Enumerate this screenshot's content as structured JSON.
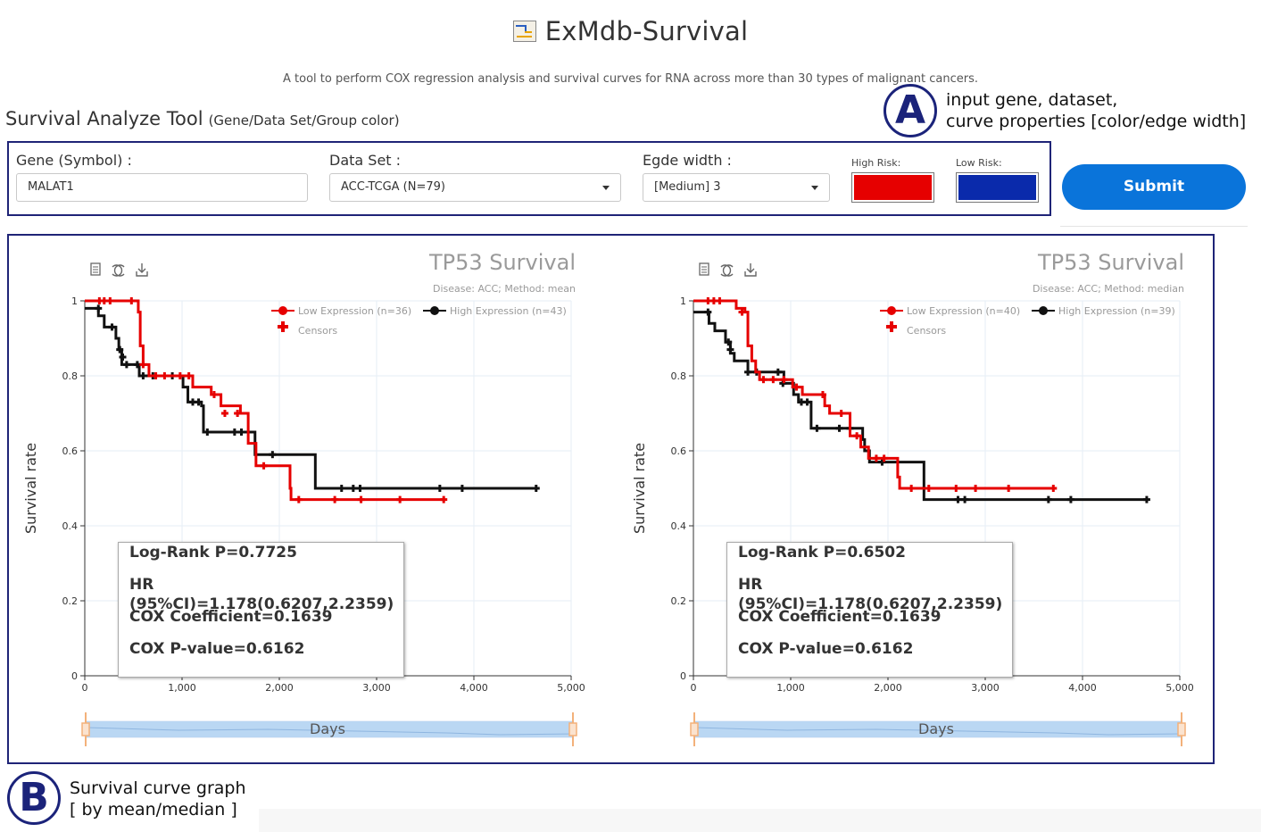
{
  "app": {
    "title": "ExMdb-Survival",
    "subtitle": "A tool to perform COX regression analysis and survival curves for RNA across more than 30 types of malignant cancers.",
    "logo_icon": "chart-logo-icon"
  },
  "tool": {
    "title": "Survival Analyze Tool",
    "hint": "(Gene/Data Set/Group color)"
  },
  "annotations": {
    "a_letter": "A",
    "a_line1": "input gene, dataset,",
    "a_line2": "curve properties [color/edge width]",
    "b_letter": "B",
    "b_line1": "Survival curve graph",
    "b_line2": "[ by mean/median ]"
  },
  "form": {
    "gene_label": "Gene (Symbol) :",
    "gene_value": "MALAT1",
    "dataset_label": "Data Set :",
    "dataset_value": "ACC-TCGA (N=79)",
    "edge_label": "Egde width :",
    "edge_value": "[Medium] 3",
    "high_risk_label": "High Risk:",
    "low_risk_label": "Low Risk:",
    "high_risk_color": "#e60000",
    "low_risk_color": "#0a2aab",
    "submit_label": "Submit"
  },
  "toolbox_icons": [
    "data-view-icon",
    "restore-icon",
    "save-image-icon"
  ],
  "chart_data": [
    {
      "type": "line",
      "title": "TP53 Survival",
      "subtitle": "Disease: ACC; Method: mean",
      "xlabel": "Days",
      "ylabel": "Survival rate",
      "xlim": [
        0,
        5000
      ],
      "ylim": [
        0,
        1
      ],
      "xticks": [
        "0",
        "1,000",
        "2,000",
        "3,000",
        "4,000",
        "5,000"
      ],
      "yticks": [
        "0",
        "0.2",
        "0.4",
        "0.6",
        "0.8",
        "1"
      ],
      "grid": true,
      "legend_position": "top-right",
      "series": [
        {
          "name": "Low Expression (n=36)",
          "color": "#e60000",
          "steps": [
            [
              0,
              1
            ],
            [
              520,
              1
            ],
            [
              550,
              0.97
            ],
            [
              570,
              0.88
            ],
            [
              600,
              0.83
            ],
            [
              660,
              0.8
            ],
            [
              1110,
              0.77
            ],
            [
              1300,
              0.75
            ],
            [
              1400,
              0.72
            ],
            [
              1600,
              0.7
            ],
            [
              1680,
              0.62
            ],
            [
              1760,
              0.56
            ],
            [
              2110,
              0.5
            ],
            [
              2120,
              0.47
            ],
            [
              3690,
              0.47
            ]
          ],
          "censors": [
            [
              150,
              1
            ],
            [
              200,
              1
            ],
            [
              260,
              1
            ],
            [
              480,
              1
            ],
            [
              600,
              0.83
            ],
            [
              730,
              0.8
            ],
            [
              820,
              0.8
            ],
            [
              980,
              0.8
            ],
            [
              1070,
              0.8
            ],
            [
              1330,
              0.75
            ],
            [
              1440,
              0.7
            ],
            [
              1570,
              0.7
            ],
            [
              1840,
              0.56
            ],
            [
              2200,
              0.47
            ],
            [
              2570,
              0.47
            ],
            [
              2840,
              0.47
            ],
            [
              3240,
              0.47
            ],
            [
              3690,
              0.47
            ]
          ]
        },
        {
          "name": "High Expression (n=43)",
          "color": "#111111",
          "steps": [
            [
              0,
              0.98
            ],
            [
              140,
              0.96
            ],
            [
              200,
              0.93
            ],
            [
              320,
              0.9
            ],
            [
              350,
              0.87
            ],
            [
              380,
              0.83
            ],
            [
              560,
              0.8
            ],
            [
              1010,
              0.77
            ],
            [
              1060,
              0.73
            ],
            [
              1200,
              0.72
            ],
            [
              1220,
              0.65
            ],
            [
              1750,
              0.59
            ],
            [
              2370,
              0.5
            ],
            [
              4640,
              0.5
            ]
          ],
          "censors": [
            [
              140,
              0.98
            ],
            [
              280,
              0.93
            ],
            [
              360,
              0.87
            ],
            [
              390,
              0.85
            ],
            [
              430,
              0.83
            ],
            [
              540,
              0.83
            ],
            [
              600,
              0.8
            ],
            [
              700,
              0.8
            ],
            [
              900,
              0.8
            ],
            [
              1110,
              0.73
            ],
            [
              1170,
              0.73
            ],
            [
              1260,
              0.65
            ],
            [
              1540,
              0.65
            ],
            [
              1610,
              0.65
            ],
            [
              1930,
              0.59
            ],
            [
              2640,
              0.5
            ],
            [
              2760,
              0.5
            ],
            [
              2830,
              0.5
            ],
            [
              3650,
              0.5
            ],
            [
              3880,
              0.5
            ],
            [
              4640,
              0.5
            ]
          ]
        }
      ],
      "legend_censors": "Censors",
      "stats": [
        "Log-Rank P=0.7725",
        "HR (95%CI)=1.178(0.6207,2.2359)",
        "COX Coefficient=0.1639",
        "COX P-value=0.6162"
      ]
    },
    {
      "type": "line",
      "title": "TP53 Survival",
      "subtitle": "Disease: ACC; Method: median",
      "xlabel": "Days",
      "ylabel": "Survival rate",
      "xlim": [
        0,
        5000
      ],
      "ylim": [
        0,
        1
      ],
      "xticks": [
        "0",
        "1,000",
        "2,000",
        "3,000",
        "4,000",
        "5,000"
      ],
      "yticks": [
        "0",
        "0.2",
        "0.4",
        "0.6",
        "0.8",
        "1"
      ],
      "grid": true,
      "legend_position": "top-right",
      "series": [
        {
          "name": "Low Expression (n=40)",
          "color": "#e60000",
          "steps": [
            [
              0,
              1
            ],
            [
              400,
              1
            ],
            [
              440,
              0.98
            ],
            [
              530,
              0.97
            ],
            [
              560,
              0.88
            ],
            [
              600,
              0.84
            ],
            [
              640,
              0.81
            ],
            [
              680,
              0.79
            ],
            [
              1020,
              0.77
            ],
            [
              1120,
              0.75
            ],
            [
              1350,
              0.72
            ],
            [
              1400,
              0.7
            ],
            [
              1610,
              0.64
            ],
            [
              1720,
              0.61
            ],
            [
              1800,
              0.58
            ],
            [
              2100,
              0.53
            ],
            [
              2120,
              0.5
            ],
            [
              3700,
              0.5
            ]
          ],
          "censors": [
            [
              150,
              1
            ],
            [
              210,
              1
            ],
            [
              270,
              1
            ],
            [
              500,
              0.97
            ],
            [
              720,
              0.79
            ],
            [
              820,
              0.79
            ],
            [
              930,
              0.79
            ],
            [
              1060,
              0.77
            ],
            [
              1330,
              0.75
            ],
            [
              1520,
              0.7
            ],
            [
              1680,
              0.64
            ],
            [
              1880,
              0.58
            ],
            [
              1960,
              0.58
            ],
            [
              2240,
              0.5
            ],
            [
              2420,
              0.5
            ],
            [
              2700,
              0.5
            ],
            [
              2900,
              0.5
            ],
            [
              3240,
              0.5
            ],
            [
              3700,
              0.5
            ]
          ]
        },
        {
          "name": "High Expression (n=39)",
          "color": "#111111",
          "steps": [
            [
              0,
              0.97
            ],
            [
              160,
              0.94
            ],
            [
              220,
              0.92
            ],
            [
              330,
              0.89
            ],
            [
              380,
              0.86
            ],
            [
              420,
              0.84
            ],
            [
              560,
              0.81
            ],
            [
              930,
              0.78
            ],
            [
              1030,
              0.75
            ],
            [
              1080,
              0.73
            ],
            [
              1210,
              0.66
            ],
            [
              1740,
              0.63
            ],
            [
              1760,
              0.6
            ],
            [
              1810,
              0.57
            ],
            [
              2370,
              0.47
            ],
            [
              4660,
              0.47
            ]
          ],
          "censors": [
            [
              150,
              0.97
            ],
            [
              360,
              0.89
            ],
            [
              380,
              0.87
            ],
            [
              560,
              0.81
            ],
            [
              650,
              0.81
            ],
            [
              870,
              0.81
            ],
            [
              920,
              0.78
            ],
            [
              1110,
              0.73
            ],
            [
              1170,
              0.73
            ],
            [
              1270,
              0.66
            ],
            [
              1500,
              0.66
            ],
            [
              1610,
              0.66
            ],
            [
              1940,
              0.57
            ],
            [
              2720,
              0.47
            ],
            [
              2790,
              0.47
            ],
            [
              3650,
              0.47
            ],
            [
              3880,
              0.47
            ],
            [
              4660,
              0.47
            ]
          ]
        }
      ],
      "legend_censors": "Censors",
      "stats": [
        "Log-Rank P=0.6502",
        "HR (95%CI)=1.178(0.6207,2.2359)",
        "COX Coefficient=0.1639",
        "COX P-value=0.6162"
      ]
    }
  ]
}
